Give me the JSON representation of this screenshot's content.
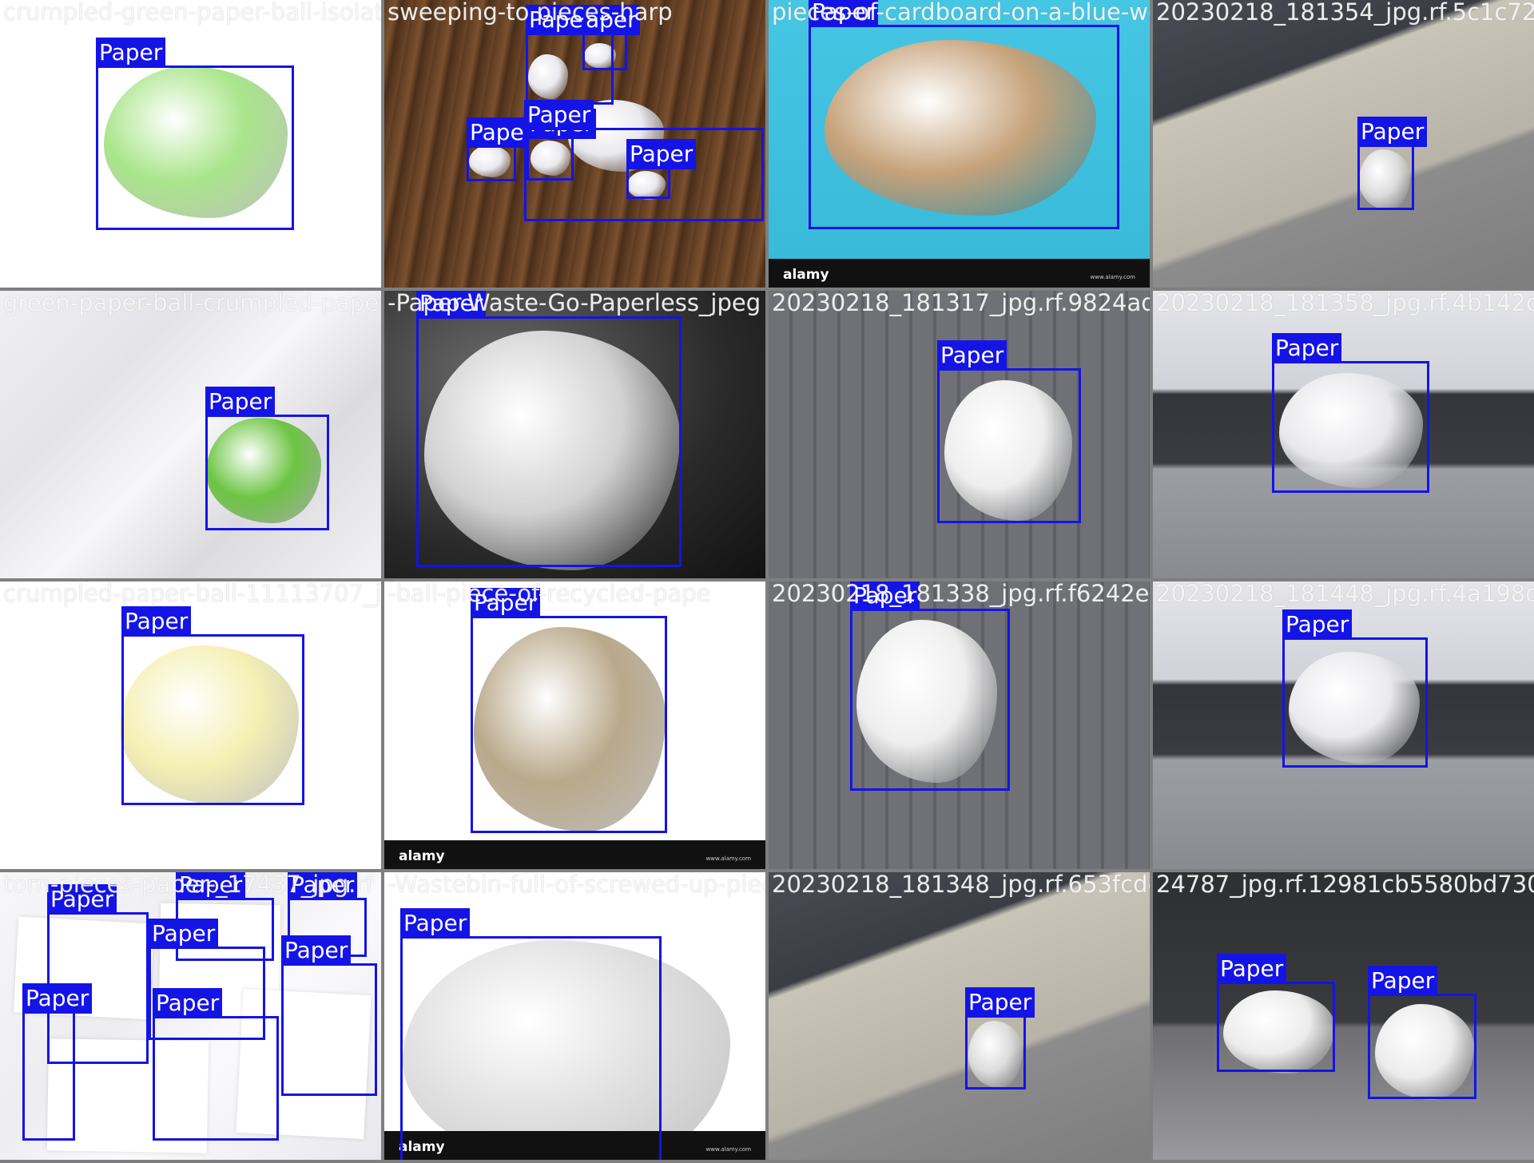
{
  "colors": {
    "box": "#1414e6",
    "separator": "#7f7f7f"
  },
  "watermark": {
    "logo": "alamy",
    "site": "www.alamy.com"
  },
  "tiles": [
    {
      "filename": "crumpled-green-paper-ball-isolated-white",
      "scene": "white",
      "paper": "#a9e58a",
      "boxes": [
        {
          "label": "Paper"
        }
      ]
    },
    {
      "filename": "sweeping-to pieces-harp",
      "scene": "wood",
      "paper": "#e9e9ee",
      "boxes": [
        {
          "label": "Paper"
        },
        {
          "label": "aper"
        },
        {
          "label": "Paper"
        },
        {
          "label": "Pape"
        },
        {
          "label": "Paper"
        },
        {
          "label": "Paper"
        }
      ]
    },
    {
      "filename": "pieces-of-cardboard-on-a-blue-wood",
      "scene": "cyan",
      "paper": "#c6a27a",
      "boxes": [
        {
          "label": "Paper"
        }
      ]
    },
    {
      "filename": "20230218_181354_jpg.rf.5c1c72",
      "scene": "laptop",
      "paper": "#dcdcdc",
      "boxes": [
        {
          "label": "Paper"
        }
      ]
    },
    {
      "filename": "green-paper-ball-crumpled-paper-Paper",
      "scene": "crumple",
      "paper": "#6cc542",
      "boxes": [
        {
          "label": "Paper"
        }
      ]
    },
    {
      "filename": "-Paper-Waste-Go-Paperless_jpeg",
      "scene": "dark",
      "paper": "#d2d2d2",
      "boxes": [
        {
          "label": "Paper"
        }
      ]
    },
    {
      "filename": "20230218_181317_jpg.rf.9824ad",
      "scene": "keyboard",
      "paper": "#eeeeee",
      "boxes": [
        {
          "label": "Paper"
        }
      ]
    },
    {
      "filename": "20230218_181358_jpg.rf.4b142c",
      "scene": "laptop2",
      "paper": "#e8e8ec",
      "boxes": [
        {
          "label": "Paper"
        }
      ]
    },
    {
      "filename": "crumpled-paper-ball-11113707_jpg.rf.31",
      "scene": "white",
      "paper": "#f5f0b4",
      "boxes": [
        {
          "label": "Paper"
        }
      ]
    },
    {
      "filename": "-ball-piece-of-recycled-pape",
      "scene": "white",
      "paper": "#b9a98b",
      "boxes": [
        {
          "label": "Paper"
        }
      ]
    },
    {
      "filename": "20230218_181338_jpg.rf.f6242e5",
      "scene": "keyboard",
      "paper": "#eeeeee",
      "boxes": [
        {
          "label": "Paper"
        }
      ]
    },
    {
      "filename": "20230218_181448_jpg.rf.4a198d",
      "scene": "laptop2",
      "paper": "#eaeaee",
      "boxes": [
        {
          "label": "Paper"
        }
      ]
    },
    {
      "filename": "torn-pieces-paper-_17437_jpg.rf",
      "scene": "torn",
      "paper": "#f4f4f6",
      "boxes": [
        {
          "label": "Paper"
        },
        {
          "label": "Paper"
        },
        {
          "label": "Paper"
        },
        {
          "label": "Paper"
        },
        {
          "label": "Paper"
        },
        {
          "label": "Paper"
        },
        {
          "label": "Paper"
        }
      ]
    },
    {
      "filename": "-Wastebin-full-of-screwed-up-pieces",
      "scene": "white",
      "paper": "#e0e0e0",
      "boxes": [
        {
          "label": "Paper"
        }
      ]
    },
    {
      "filename": "20230218_181348_jpg.rf.653fcde",
      "scene": "laptop",
      "paper": "#dcdcdc",
      "boxes": [
        {
          "label": "Paper"
        }
      ]
    },
    {
      "filename": "24787_jpg.rf.12981cb5580bd730",
      "scene": "desk",
      "paper": "#ececec",
      "boxes": [
        {
          "label": "Paper"
        },
        {
          "label": "Paper"
        }
      ]
    }
  ]
}
